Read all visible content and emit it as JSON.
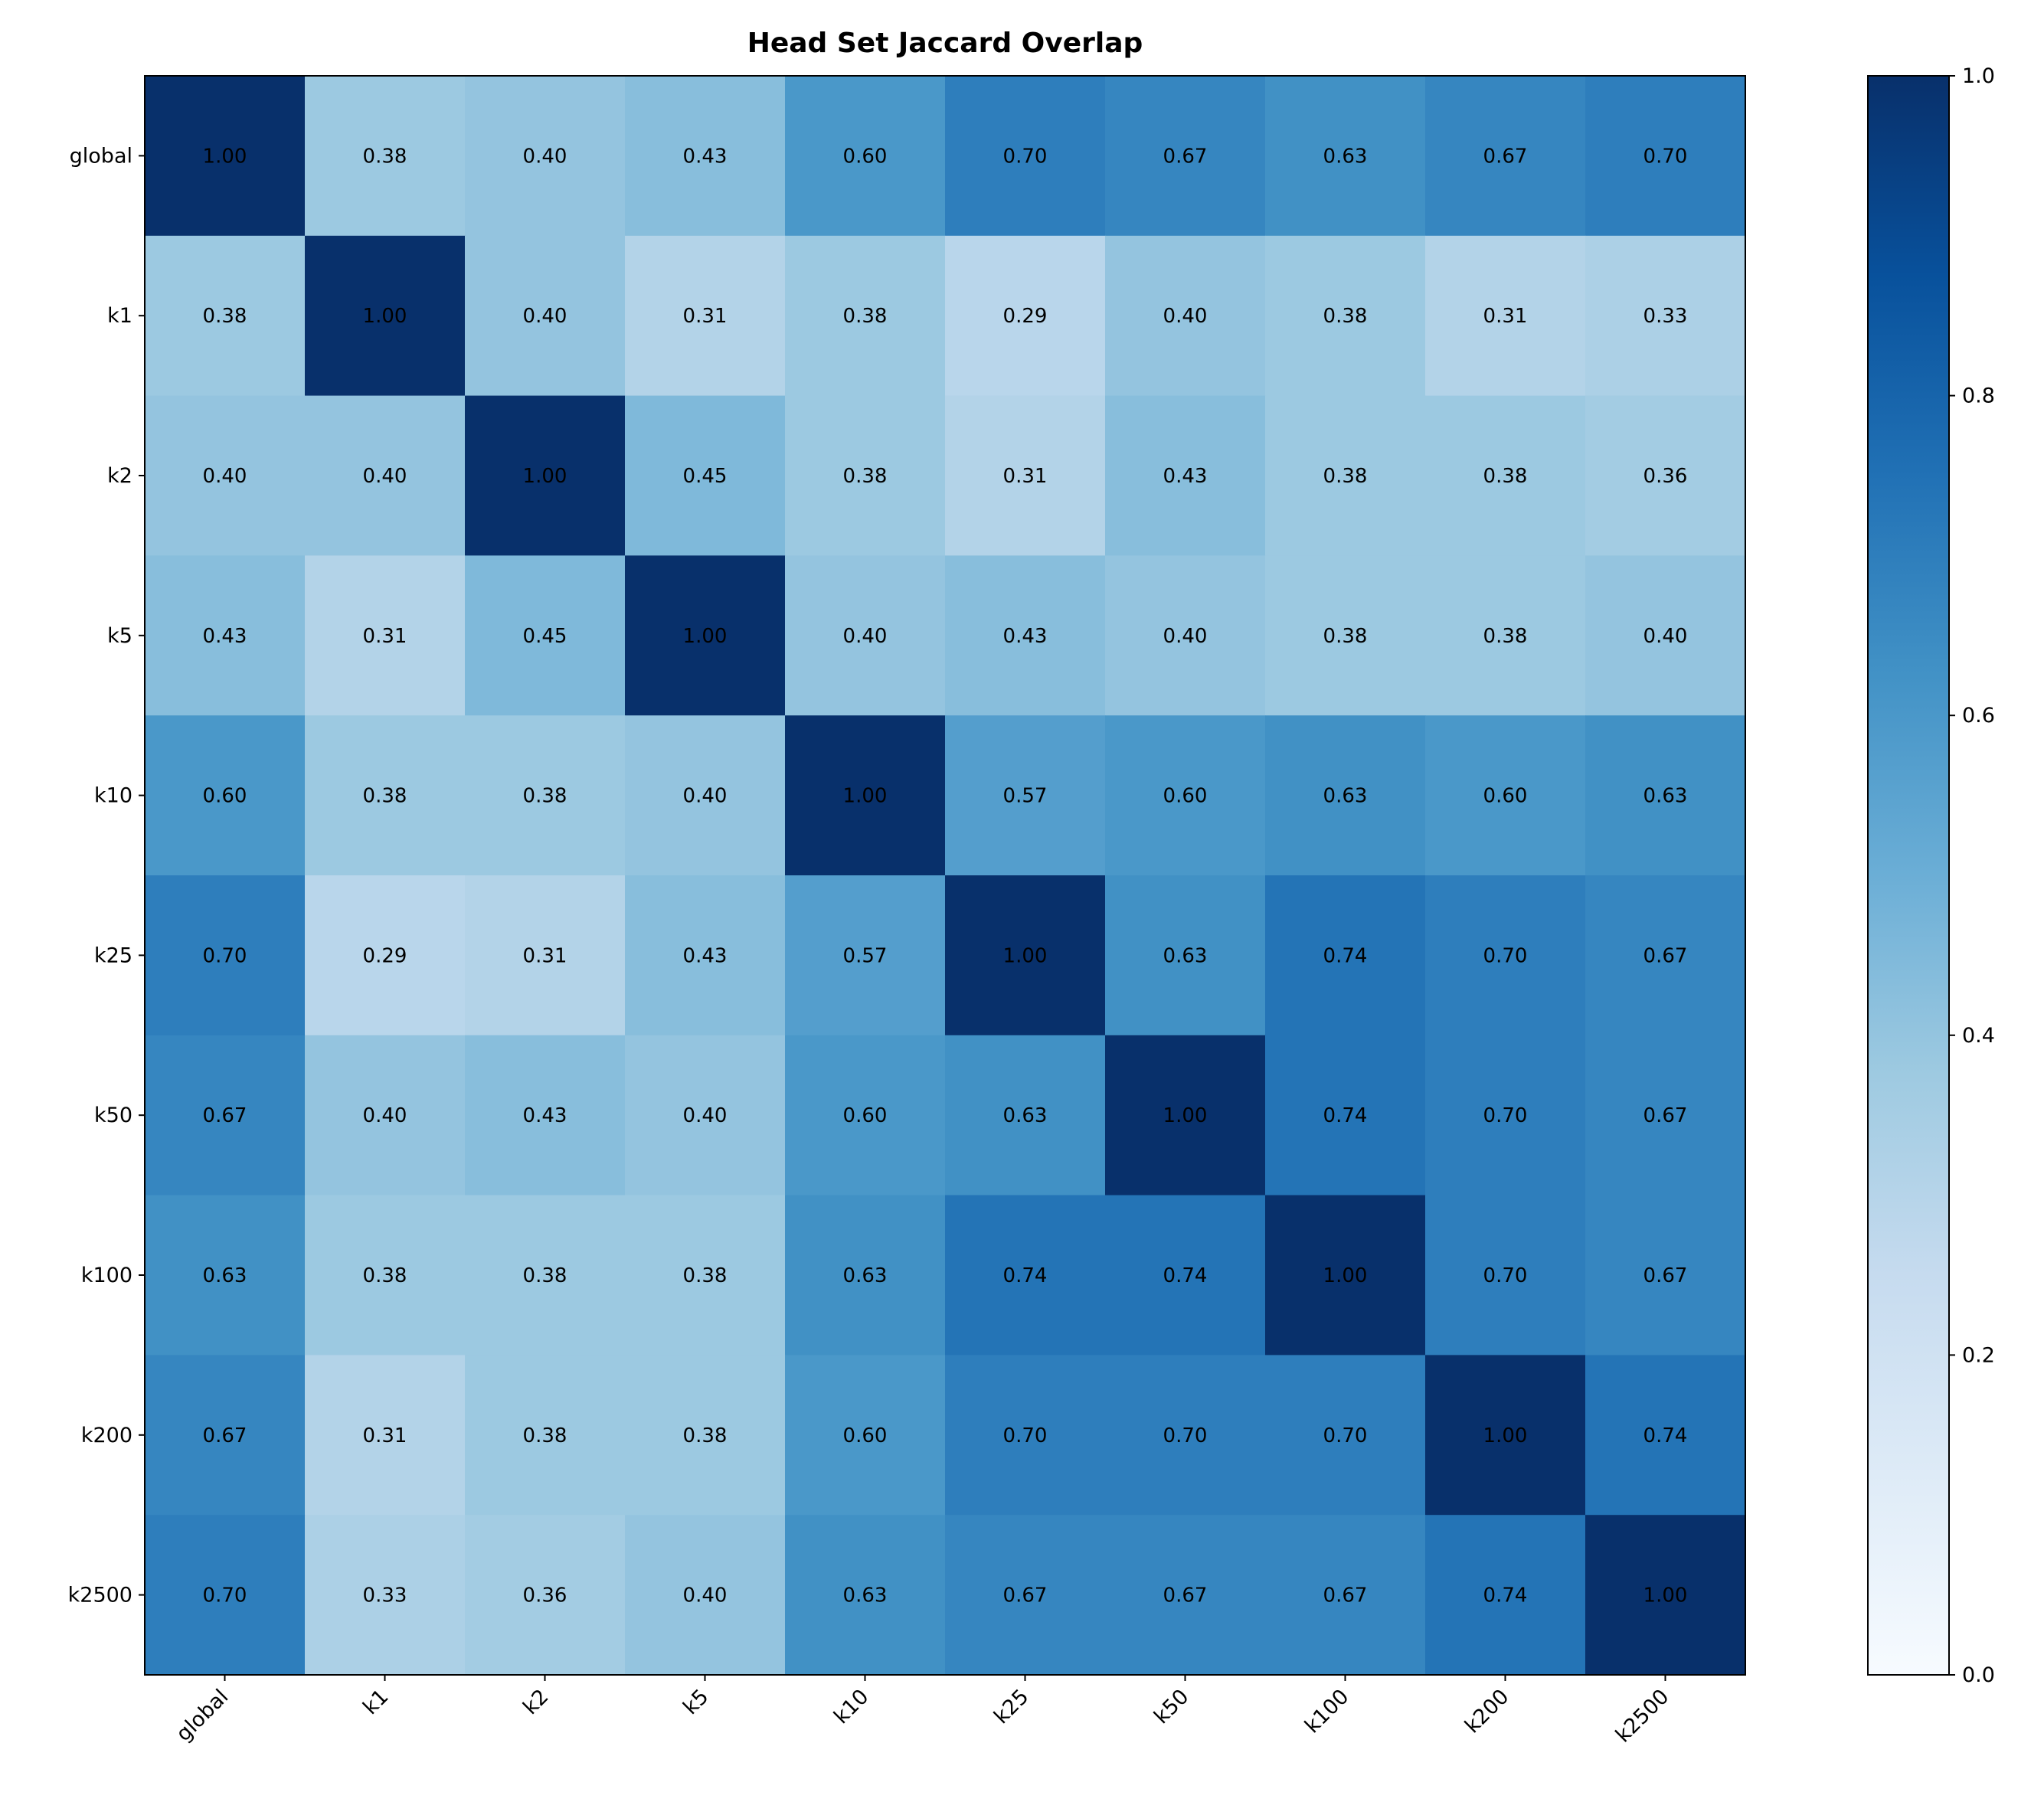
{
  "chart_data": {
    "type": "heatmap",
    "title": "Head Set Jaccard Overlap",
    "row_labels": [
      "global",
      "k1",
      "k2",
      "k5",
      "k10",
      "k25",
      "k50",
      "k100",
      "k200",
      "k2500"
    ],
    "col_labels": [
      "global",
      "k1",
      "k2",
      "k5",
      "k10",
      "k25",
      "k50",
      "k100",
      "k200",
      "k2500"
    ],
    "values": [
      [
        1.0,
        0.38,
        0.4,
        0.43,
        0.6,
        0.7,
        0.67,
        0.63,
        0.67,
        0.7
      ],
      [
        0.38,
        1.0,
        0.4,
        0.31,
        0.38,
        0.29,
        0.4,
        0.38,
        0.31,
        0.33
      ],
      [
        0.4,
        0.4,
        1.0,
        0.45,
        0.38,
        0.31,
        0.43,
        0.38,
        0.38,
        0.36
      ],
      [
        0.43,
        0.31,
        0.45,
        1.0,
        0.4,
        0.43,
        0.4,
        0.38,
        0.38,
        0.4
      ],
      [
        0.6,
        0.38,
        0.38,
        0.4,
        1.0,
        0.57,
        0.6,
        0.63,
        0.6,
        0.63
      ],
      [
        0.7,
        0.29,
        0.31,
        0.43,
        0.57,
        1.0,
        0.63,
        0.74,
        0.7,
        0.67
      ],
      [
        0.67,
        0.4,
        0.43,
        0.4,
        0.6,
        0.63,
        1.0,
        0.74,
        0.7,
        0.67
      ],
      [
        0.63,
        0.38,
        0.38,
        0.38,
        0.63,
        0.74,
        0.74,
        1.0,
        0.7,
        0.67
      ],
      [
        0.67,
        0.31,
        0.38,
        0.38,
        0.6,
        0.7,
        0.7,
        0.7,
        1.0,
        0.74
      ],
      [
        0.7,
        0.33,
        0.36,
        0.4,
        0.63,
        0.67,
        0.67,
        0.67,
        0.74,
        1.0
      ]
    ],
    "value_format": "2 decimals",
    "colormap": "Blues",
    "vmin": 0.0,
    "vmax": 1.0,
    "colorbar_ticks": [
      "0.0",
      "0.2",
      "0.4",
      "0.6",
      "0.8",
      "1.0"
    ],
    "annotation_color": "#000000"
  }
}
